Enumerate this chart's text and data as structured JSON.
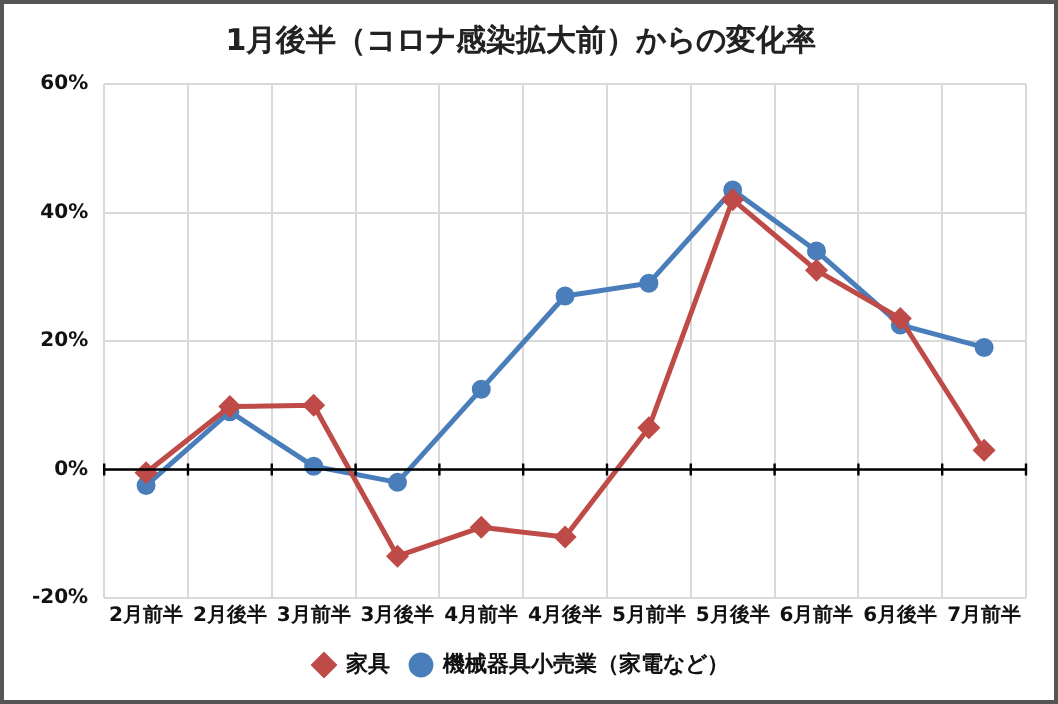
{
  "chart_data": {
    "type": "line",
    "title": "1月後半（コロナ感染拡大前）からの変化率",
    "categories": [
      "2月前半",
      "2月後半",
      "3月前半",
      "3月後半",
      "4月前半",
      "4月後半",
      "5月前半",
      "5月後半",
      "6月前半",
      "6月後半",
      "7月前半"
    ],
    "series": [
      {
        "name": "機械器具小売業（家電など）",
        "color": "#4a7ebb",
        "marker": "circle",
        "values": [
          -2.5,
          9,
          0.5,
          -2,
          12.5,
          27,
          29,
          43.5,
          34,
          22.5,
          19
        ]
      },
      {
        "name": "家具",
        "color": "#be4b48",
        "marker": "diamond",
        "values": [
          -0.5,
          9.8,
          10,
          -13.5,
          -9,
          -10.5,
          6.5,
          42,
          31,
          23.5,
          3
        ]
      }
    ],
    "ylim": [
      -20,
      60
    ],
    "yticks": [
      {
        "value": -20,
        "label": "-20%"
      },
      {
        "value": 0,
        "label": "0%"
      },
      {
        "value": 20,
        "label": "20%"
      },
      {
        "value": 40,
        "label": "40%"
      },
      {
        "value": 60,
        "label": "60%"
      }
    ],
    "grid": true,
    "legend": "bottom"
  }
}
